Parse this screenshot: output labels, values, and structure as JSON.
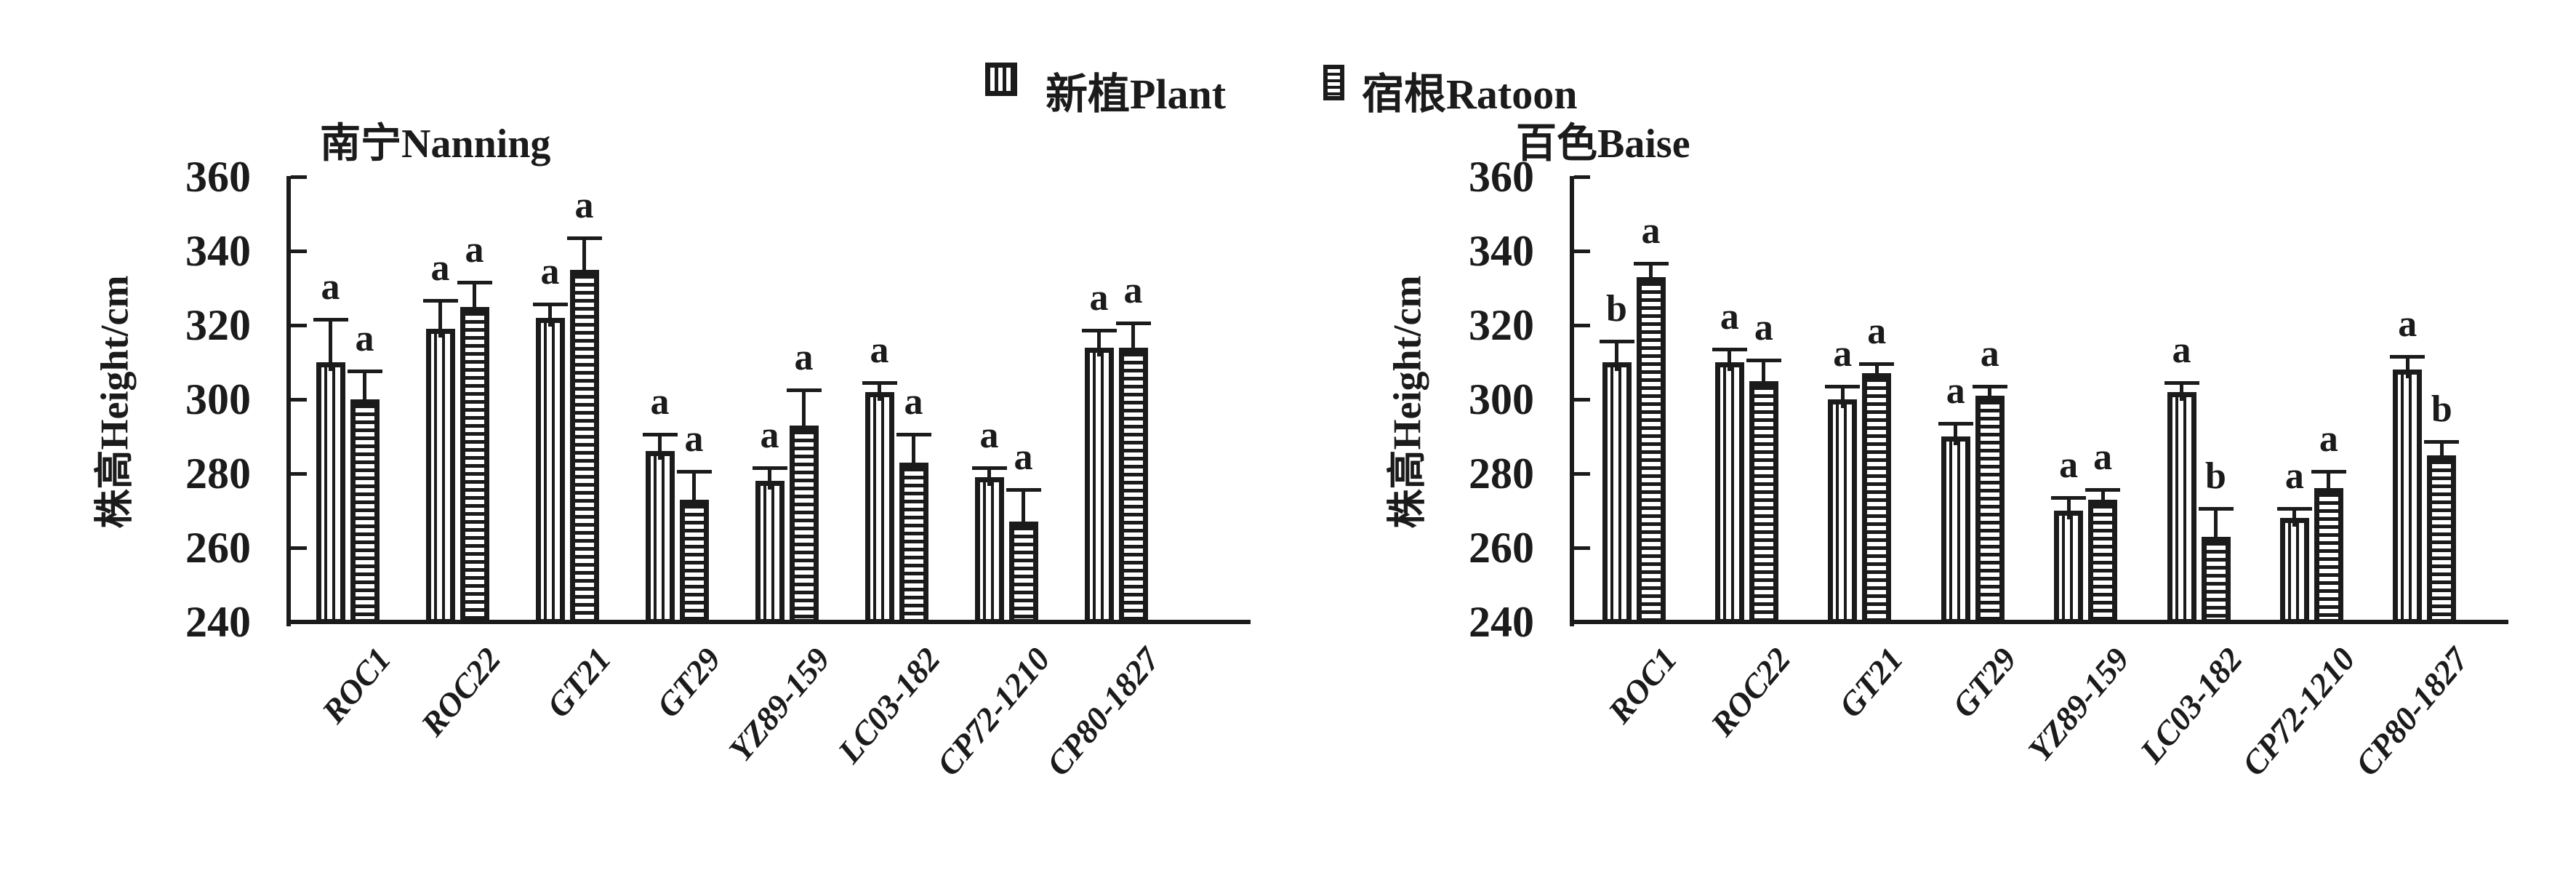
{
  "page": {
    "background": "#ffffff",
    "ink": "#1b1b1b"
  },
  "legend": {
    "position": "top-center",
    "items": [
      {
        "label": "新植Plant",
        "pattern": "vertical-stripes"
      },
      {
        "label": "宿根Ratoon",
        "pattern": "horizontal-stripes"
      }
    ]
  },
  "chart_data": [
    {
      "type": "bar",
      "title": "南宁Nanning",
      "ylabel": "株高Height/cm",
      "xlabel": "",
      "ylim": [
        240,
        360
      ],
      "yticks": [
        240,
        260,
        280,
        300,
        320,
        340,
        360
      ],
      "grid": false,
      "error_bars": true,
      "legend_position": "top-center",
      "categories": [
        "ROC1",
        "ROC22",
        "GT21",
        "GT29",
        "YZ89-159",
        "LC03-182",
        "CP72-1210",
        "CP80-1827"
      ],
      "series": [
        {
          "name": "新植Plant",
          "pattern": "vertical-stripes",
          "values": [
            310,
            319,
            322,
            286,
            278,
            302,
            279,
            314
          ],
          "errors": [
            12,
            8,
            4,
            5,
            4,
            3,
            3,
            5
          ],
          "sig_letters": [
            "a",
            "a",
            "a",
            "a",
            "a",
            "a",
            "a",
            "a"
          ]
        },
        {
          "name": "宿根Ratoon",
          "pattern": "horizontal-stripes",
          "values": [
            300,
            325,
            335,
            273,
            293,
            283,
            267,
            314
          ],
          "errors": [
            8,
            7,
            9,
            8,
            10,
            8,
            9,
            7
          ],
          "sig_letters": [
            "a",
            "a",
            "a",
            "a",
            "a",
            "a",
            "a",
            "a"
          ]
        }
      ]
    },
    {
      "type": "bar",
      "title": "百色Baise",
      "ylabel": "株高Height/cm",
      "xlabel": "",
      "ylim": [
        240,
        360
      ],
      "yticks": [
        240,
        260,
        280,
        300,
        320,
        340,
        360
      ],
      "grid": false,
      "error_bars": true,
      "legend_position": "top-center",
      "categories": [
        "ROC1",
        "ROC22",
        "GT21",
        "GT29",
        "YZ89-159",
        "LC03-182",
        "CP72-1210",
        "CP80-1827"
      ],
      "series": [
        {
          "name": "新植Plant",
          "pattern": "vertical-stripes",
          "values": [
            310,
            310,
            300,
            290,
            270,
            302,
            268,
            308
          ],
          "errors": [
            6,
            4,
            4,
            4,
            4,
            3,
            3,
            4
          ],
          "sig_letters": [
            "b",
            "a",
            "a",
            "a",
            "a",
            "a",
            "a",
            "a"
          ]
        },
        {
          "name": "宿根Ratoon",
          "pattern": "horizontal-stripes",
          "values": [
            333,
            305,
            307,
            301,
            273,
            263,
            276,
            285
          ],
          "errors": [
            4,
            6,
            3,
            3,
            3,
            8,
            5,
            4
          ],
          "sig_letters": [
            "a",
            "a",
            "a",
            "a",
            "a",
            "b",
            "a",
            "b"
          ]
        }
      ]
    }
  ]
}
